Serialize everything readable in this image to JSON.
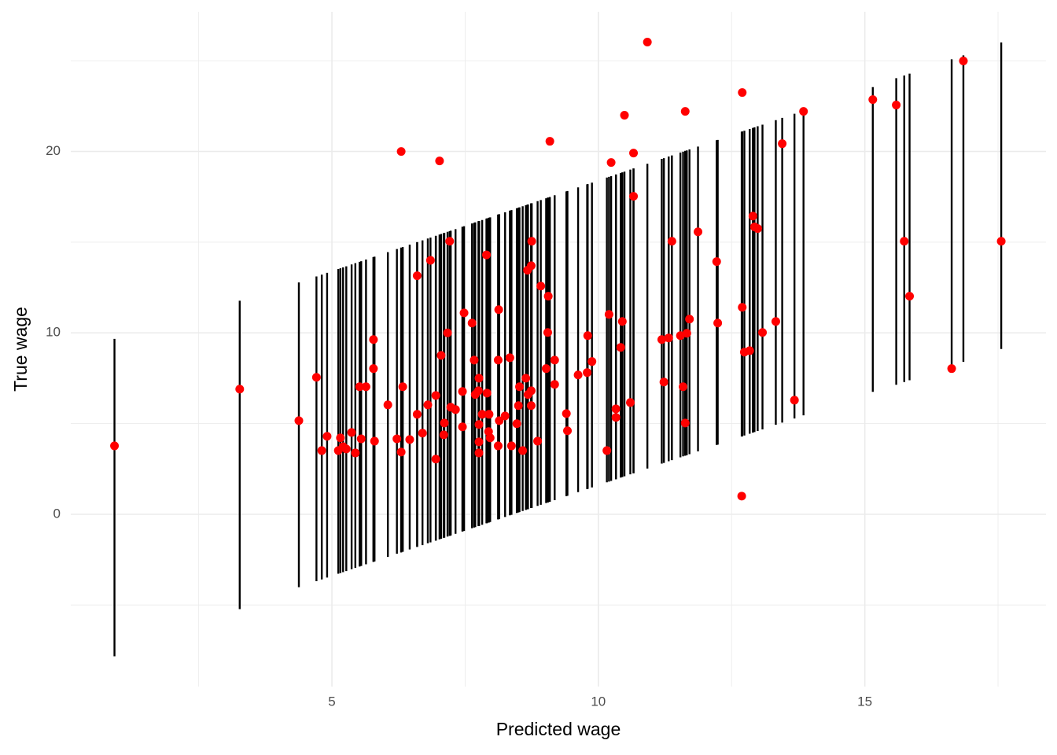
{
  "chart_data": {
    "type": "scatter",
    "x_label": "Predicted wage",
    "y_label": "True wage",
    "x": [
      0.92,
      3.27,
      4.38,
      4.71,
      4.81,
      4.91,
      5.12,
      5.16,
      5.21,
      5.27,
      5.37,
      5.44,
      5.52,
      5.55,
      5.64,
      5.78,
      5.78,
      5.8,
      6.05,
      6.22,
      6.3,
      6.3,
      6.33,
      6.46,
      6.6,
      6.6,
      6.7,
      6.8,
      6.85,
      6.95,
      6.95,
      7.02,
      7.05,
      7.1,
      7.11,
      7.17,
      7.21,
      7.23,
      7.32,
      7.45,
      7.48,
      7.45,
      7.63,
      7.67,
      7.69,
      7.75,
      7.76,
      7.76,
      7.76,
      7.76,
      7.82,
      7.9,
      7.91,
      7.94,
      7.95,
      7.97,
      8.12,
      8.12,
      8.13,
      8.14,
      8.25,
      8.34,
      8.37,
      8.47,
      8.5,
      8.52,
      8.58,
      8.64,
      8.67,
      8.68,
      8.74,
      8.74,
      8.74,
      8.75,
      8.86,
      8.92,
      9.02,
      9.05,
      9.06,
      9.09,
      9.18,
      9.18,
      9.4,
      9.42,
      9.62,
      9.79,
      9.8,
      9.88,
      10.16,
      10.2,
      10.24,
      10.33,
      10.33,
      10.42,
      10.45,
      10.49,
      10.6,
      10.66,
      10.66,
      10.92,
      11.19,
      11.23,
      11.32,
      11.38,
      11.54,
      11.59,
      11.63,
      11.63,
      11.66,
      11.71,
      11.87,
      12.22,
      12.24,
      12.69,
      12.7,
      12.7,
      12.74,
      12.84,
      12.9,
      12.93,
      12.99,
      13.08,
      13.33,
      13.45,
      13.68,
      13.85,
      15.15,
      15.59,
      15.74,
      15.84,
      16.63,
      16.85,
      17.56
    ],
    "y": [
      3.77,
      6.9,
      5.16,
      7.55,
      3.51,
      4.3,
      3.51,
      4.21,
      3.73,
      3.6,
      4.51,
      3.38,
      7.03,
      4.16,
      7.03,
      9.63,
      8.03,
      4.03,
      6.03,
      4.16,
      20.0,
      3.43,
      7.03,
      4.12,
      13.15,
      5.51,
      4.47,
      6.03,
      14.0,
      6.55,
      3.04,
      19.48,
      8.76,
      4.38,
      5.03,
      10.0,
      15.05,
      5.9,
      5.77,
      4.82,
      11.1,
      6.77,
      10.54,
      8.5,
      6.6,
      6.81,
      7.5,
      4.95,
      3.99,
      3.38,
      5.51,
      14.3,
      6.68,
      4.56,
      5.51,
      4.21,
      3.77,
      8.5,
      11.28,
      5.16,
      5.42,
      8.63,
      3.77,
      4.99,
      5.99,
      7.03,
      3.51,
      7.5,
      13.45,
      6.6,
      13.7,
      6.81,
      5.99,
      15.05,
      4.03,
      12.58,
      8.03,
      10.02,
      12.02,
      20.56,
      8.5,
      7.16,
      5.55,
      4.6,
      7.68,
      7.81,
      9.85,
      8.42,
      3.51,
      11.02,
      19.39,
      5.81,
      5.34,
      9.2,
      10.63,
      22.0,
      6.16,
      19.91,
      17.53,
      26.03,
      9.63,
      7.29,
      9.72,
      15.05,
      9.85,
      7.03,
      22.21,
      5.03,
      9.98,
      10.76,
      15.57,
      13.93,
      10.54,
      1.0,
      23.25,
      11.41,
      8.94,
      9.02,
      16.44,
      15.84,
      15.75,
      10.02,
      10.63,
      20.43,
      6.29,
      22.21,
      22.86,
      22.56,
      15.05,
      12.02,
      8.03,
      24.99,
      15.05
    ],
    "errors": [
      8.75,
      8.5,
      8.4,
      8.4,
      8.4,
      8.4,
      8.4,
      8.4,
      8.4,
      8.4,
      8.4,
      8.4,
      8.4,
      8.4,
      8.4,
      8.4,
      8.4,
      8.4,
      8.4,
      8.4,
      8.4,
      8.4,
      8.4,
      8.4,
      8.4,
      8.4,
      8.4,
      8.4,
      8.4,
      8.4,
      8.4,
      8.4,
      8.4,
      8.4,
      8.4,
      8.4,
      8.4,
      8.4,
      8.4,
      8.4,
      8.4,
      8.4,
      8.4,
      8.4,
      8.4,
      8.4,
      8.4,
      8.4,
      8.4,
      8.4,
      8.4,
      8.4,
      8.4,
      8.4,
      8.4,
      8.4,
      8.4,
      8.4,
      8.4,
      8.4,
      8.4,
      8.4,
      8.4,
      8.4,
      8.4,
      8.4,
      8.4,
      8.4,
      8.4,
      8.4,
      8.4,
      8.4,
      8.4,
      8.4,
      8.4,
      8.4,
      8.4,
      8.4,
      8.4,
      8.4,
      8.4,
      8.4,
      8.4,
      8.4,
      8.4,
      8.4,
      8.4,
      8.4,
      8.4,
      8.4,
      8.4,
      8.4,
      8.4,
      8.4,
      8.4,
      8.4,
      8.4,
      8.4,
      8.4,
      8.4,
      8.4,
      8.4,
      8.4,
      8.4,
      8.4,
      8.4,
      8.4,
      8.4,
      8.4,
      8.4,
      8.4,
      8.4,
      8.4,
      8.4,
      8.4,
      8.4,
      8.4,
      8.4,
      8.4,
      8.4,
      8.4,
      8.4,
      8.4,
      8.4,
      8.4,
      8.4,
      8.4,
      8.45,
      8.45,
      8.45,
      8.45,
      8.45,
      8.45
    ],
    "point_color": "#ff0000",
    "errorbar_color": "#000000",
    "xlim": [
      0.1,
      18.4
    ],
    "ylim": [
      -9.5,
      27.7
    ],
    "xticks": [
      5,
      10,
      15
    ],
    "yticks": [
      0,
      10,
      20
    ],
    "x_minor_ticks": [
      2.5,
      7.5,
      12.5,
      17.5
    ],
    "y_minor_ticks": [
      -5,
      5,
      15,
      25
    ],
    "grid": true
  }
}
